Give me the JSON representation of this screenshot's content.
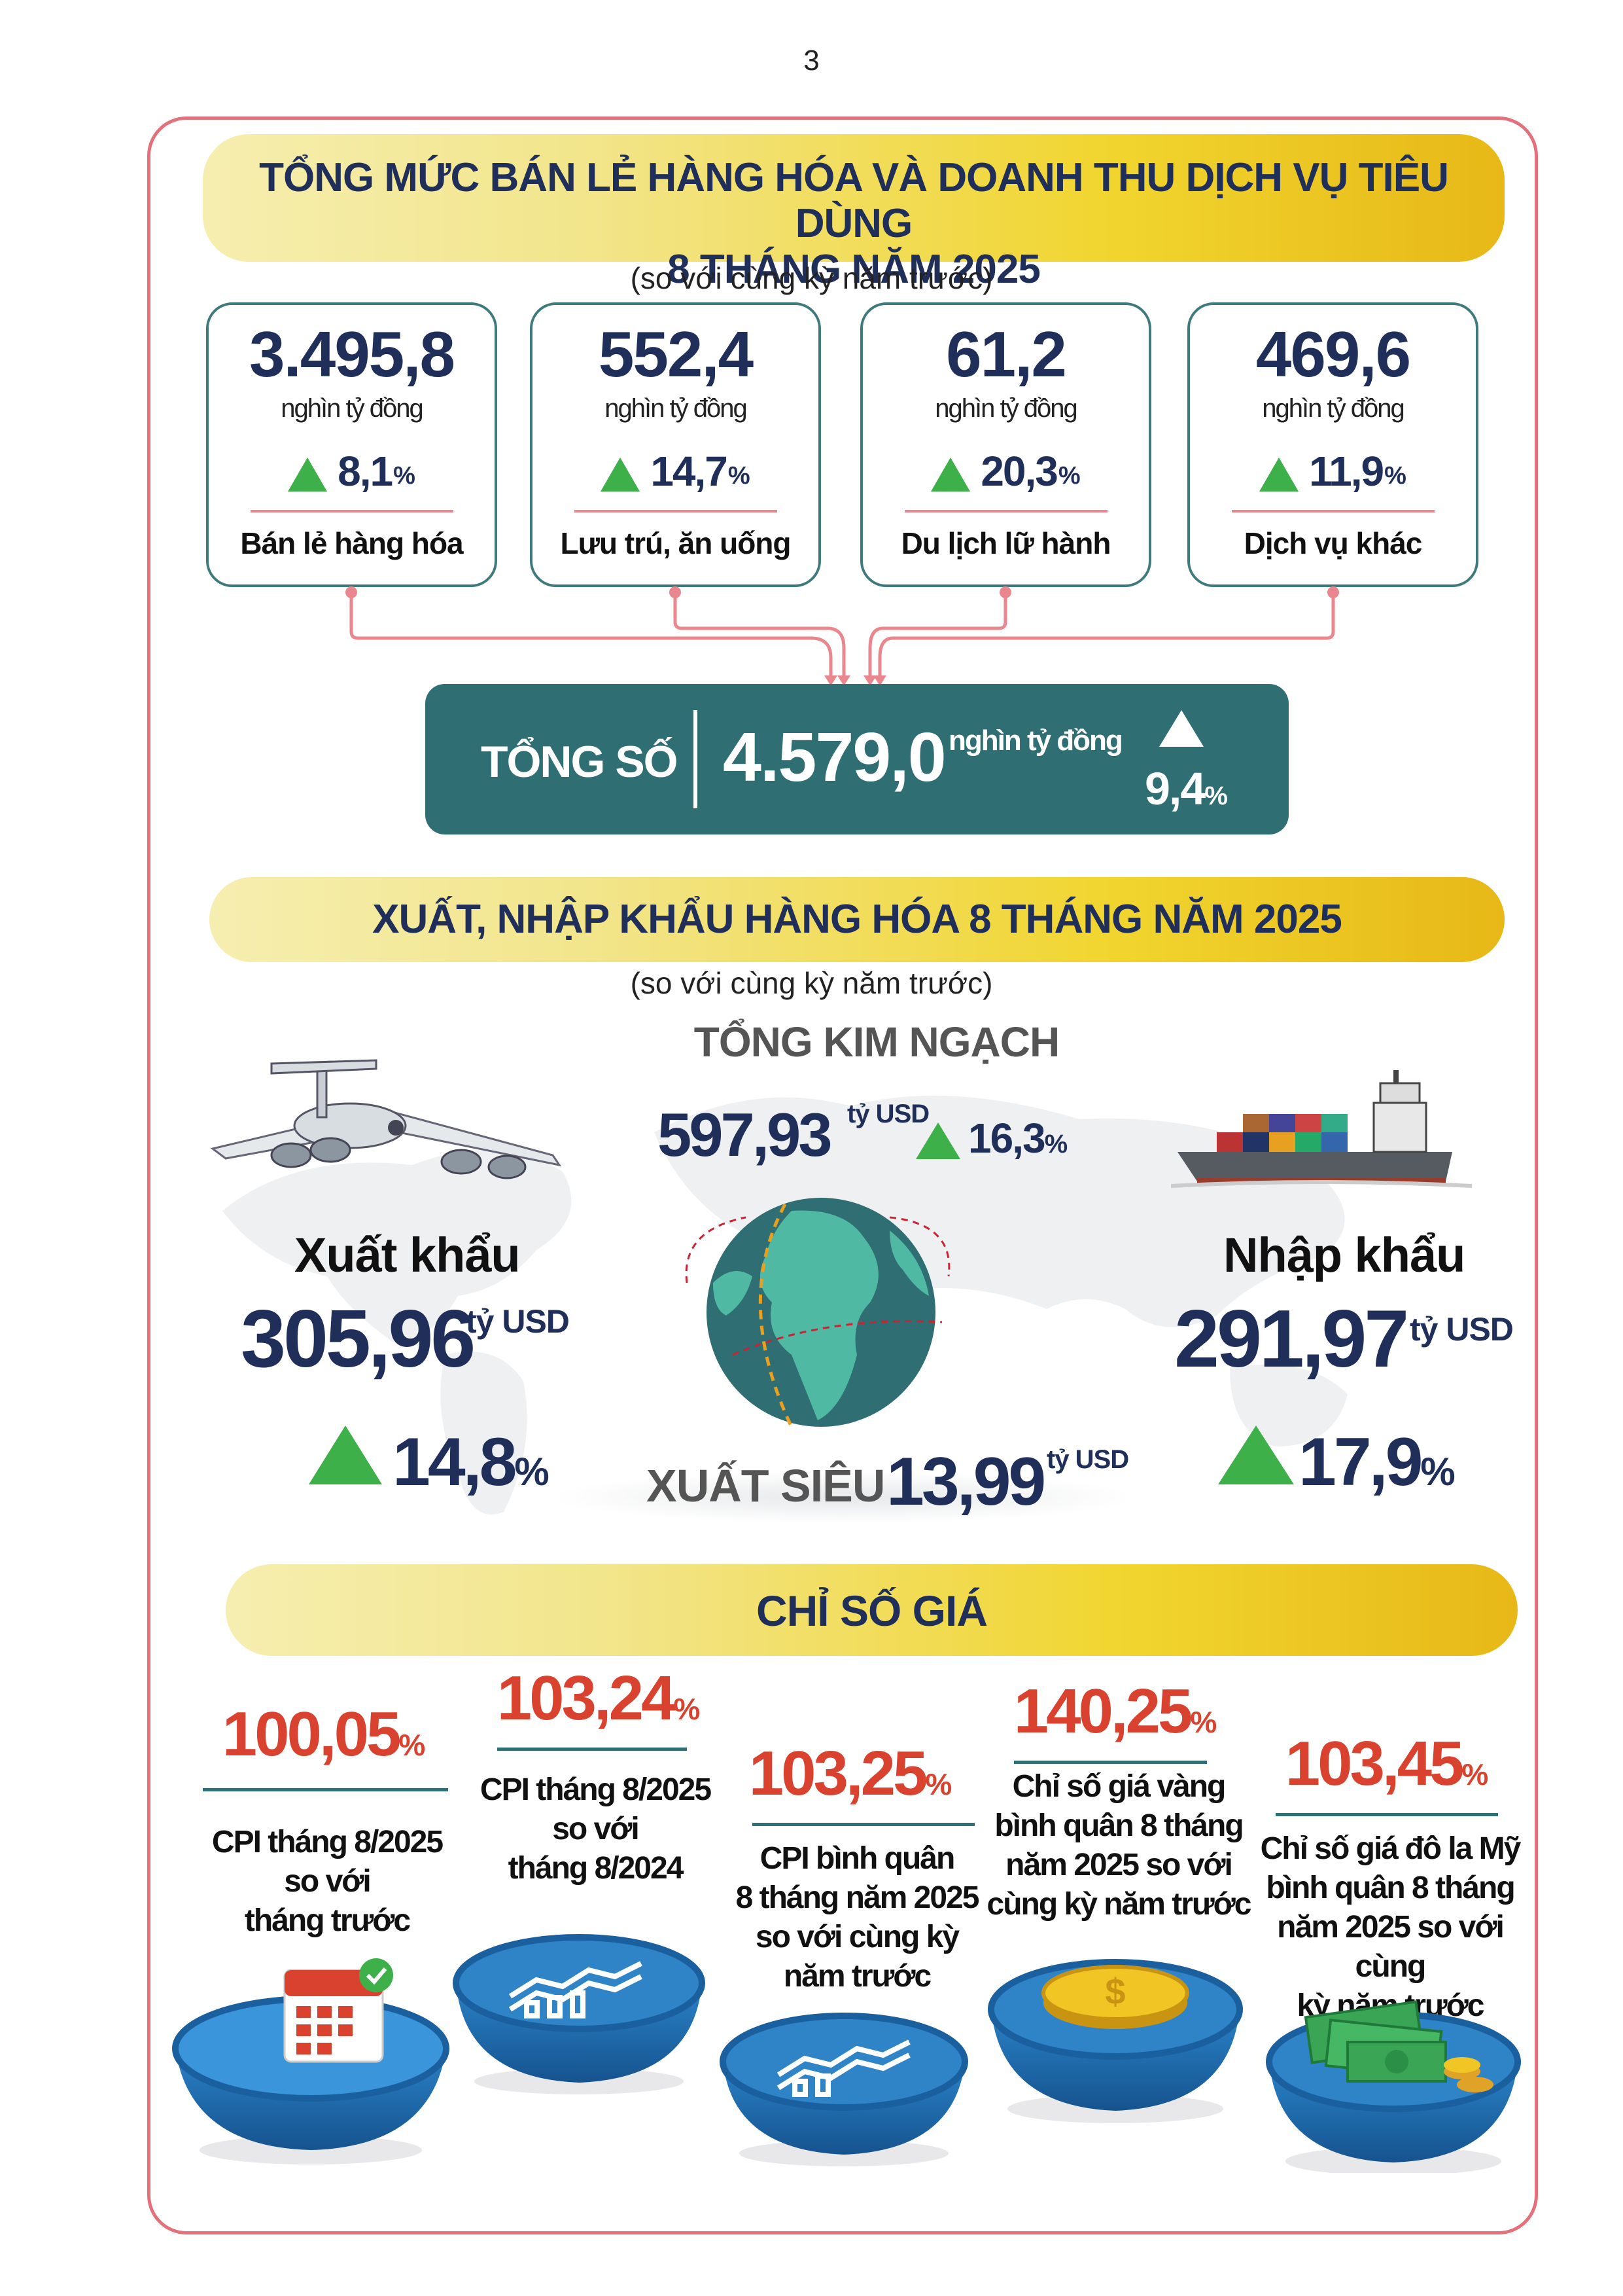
{
  "page_number": "3",
  "retail": {
    "title_line1": "TỔNG MỨC BÁN LẺ HÀNG HÓA VÀ DOANH THU DỊCH VỤ TIÊU DÙNG",
    "title_line2": "8 THÁNG NĂM 2025",
    "note": "(so với cùng kỳ năm trước)",
    "cards": [
      {
        "value": "3.495,8",
        "unit": "nghìn tỷ đồng",
        "growth": "8,1",
        "pct": "%",
        "label": "Bán lẻ hàng hóa"
      },
      {
        "value": "552,4",
        "unit": "nghìn tỷ đồng",
        "growth": "14,7",
        "pct": "%",
        "label": "Lưu trú, ăn uống"
      },
      {
        "value": "61,2",
        "unit": "nghìn tỷ đồng",
        "growth": "20,3",
        "pct": "%",
        "label": "Du lịch lữ hành"
      },
      {
        "value": "469,6",
        "unit": "nghìn tỷ đồng",
        "growth": "11,9",
        "pct": "%",
        "label": "Dịch vụ khác"
      }
    ],
    "total": {
      "label": "TỔNG SỐ",
      "value": "4.579,0",
      "unit": "nghìn tỷ đồng",
      "growth": "9,4",
      "pct": "%"
    }
  },
  "trade": {
    "title": "XUẤT, NHẬP KHẨU HÀNG HÓA 8 THÁNG NĂM 2025",
    "note": "(so với cùng kỳ năm trước)",
    "turnover_label": "TỔNG KIM NGẠCH",
    "turnover_value": "597,93",
    "turnover_unit": "tỷ USD",
    "turnover_growth": "16,3",
    "turnover_pct": "%",
    "export_label": "Xuất khẩu",
    "export_value": "305,96",
    "export_unit": "tỷ USD",
    "export_growth": "14,8",
    "export_pct": "%",
    "import_label": "Nhập khẩu",
    "import_value": "291,97",
    "import_unit": "tỷ USD",
    "import_growth": "17,9",
    "import_pct": "%",
    "surplus_label": "XUẤT SIÊU",
    "surplus_value": "13,99",
    "surplus_unit": "tỷ USD",
    "colors": {
      "globe_ocean": "#2f6e72",
      "globe_land": "#4fb9a3",
      "arrow_up": "#3eb04a"
    }
  },
  "prices": {
    "title": "CHỈ SỐ GIÁ",
    "items": [
      {
        "value": "100,05",
        "pct": "%",
        "label_lines": [
          "CPI tháng 8/2025",
          "so với",
          "tháng trước"
        ],
        "icon": "calendar-icon"
      },
      {
        "value": "103,24",
        "pct": "%",
        "label_lines": [
          "CPI tháng 8/2025",
          "so với",
          "tháng 8/2024"
        ],
        "icon": "chart-icon"
      },
      {
        "value": "103,25",
        "pct": "%",
        "label_lines": [
          "CPI bình quân",
          "8 tháng năm 2025",
          "so với cùng kỳ",
          "năm trước"
        ],
        "icon": "chart-icon"
      },
      {
        "value": "140,25",
        "pct": "%",
        "label_lines": [
          "Chỉ số giá vàng",
          "bình quân 8 tháng",
          "năm 2025 so với",
          "cùng kỳ năm trước"
        ],
        "icon": "gold-coin-icon"
      },
      {
        "value": "103,45",
        "pct": "%",
        "label_lines": [
          "Chỉ số giá đô la Mỹ",
          "bình quân 8 tháng",
          "năm 2025 so với cùng",
          "kỳ năm trước"
        ],
        "icon": "dollar-bills-icon"
      }
    ]
  }
}
